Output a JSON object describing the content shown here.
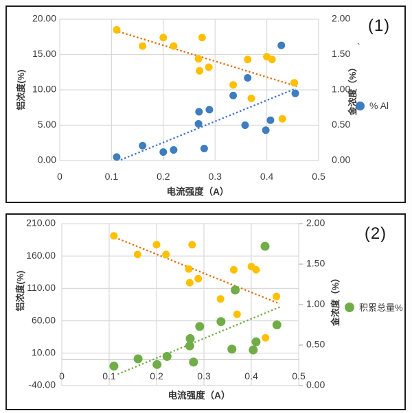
{
  "page": {
    "background": "#ffffff",
    "panel_border_color": "#1c1c1c"
  },
  "chart_data": [
    {
      "type": "scatter",
      "panel_label": "(1)",
      "stray_mark": "`",
      "grid": true,
      "legend_position": "right",
      "x_axis": {
        "label": "电流强度（A）",
        "range": [
          0,
          0.5
        ],
        "ticks": [
          {
            "v": 0,
            "label": "0"
          },
          {
            "v": 0.1,
            "label": "0.1"
          },
          {
            "v": 0.2,
            "label": "0.2"
          },
          {
            "v": 0.3,
            "label": "0.3"
          },
          {
            "v": 0.4,
            "label": "0.4"
          },
          {
            "v": 0.5,
            "label": "0.5"
          }
        ]
      },
      "y_left": {
        "label": "铝浓度(%)",
        "range": [
          0,
          20
        ],
        "ticks": [
          {
            "v": 0,
            "label": "0.00"
          },
          {
            "v": 5,
            "label": "5.00"
          },
          {
            "v": 10,
            "label": "10.00"
          },
          {
            "v": 15,
            "label": "15.00"
          },
          {
            "v": 20,
            "label": "20.00"
          }
        ]
      },
      "y_right": {
        "label": "金浓度（%）",
        "range": [
          0,
          2
        ],
        "ticks": [
          {
            "v": 0,
            "label": "0.00"
          },
          {
            "v": 0.5,
            "label": "0.50"
          },
          {
            "v": 1,
            "label": "1.00"
          },
          {
            "v": 1.5,
            "label": "1.50"
          },
          {
            "v": 2,
            "label": "2.00"
          }
        ]
      },
      "legend": {
        "label": "% Al",
        "color": "#3e7dbe"
      },
      "series": [
        {
          "name": "gold-concentration",
          "axis": "right",
          "color": "#ffc000",
          "points": [
            [
              0.11,
              1.85
            ],
            [
              0.16,
              1.62
            ],
            [
              0.2,
              1.74
            ],
            [
              0.22,
              1.62
            ],
            [
              0.275,
              1.74
            ],
            [
              0.268,
              1.44
            ],
            [
              0.288,
              1.32
            ],
            [
              0.27,
              1.27
            ],
            [
              0.335,
              1.07
            ],
            [
              0.363,
              1.43
            ],
            [
              0.37,
              0.88
            ],
            [
              0.4,
              1.47
            ],
            [
              0.41,
              1.43
            ],
            [
              0.43,
              0.59
            ],
            [
              0.453,
              1.1
            ]
          ]
        },
        {
          "name": "al-percent",
          "axis": "left",
          "color": "#3e7dbe",
          "points": [
            [
              0.11,
              0.5
            ],
            [
              0.16,
              2.1
            ],
            [
              0.2,
              1.2
            ],
            [
              0.22,
              1.5
            ],
            [
              0.268,
              5.2
            ],
            [
              0.269,
              6.9
            ],
            [
              0.289,
              7.2
            ],
            [
              0.279,
              1.7
            ],
            [
              0.335,
              9.2
            ],
            [
              0.358,
              5.0
            ],
            [
              0.363,
              11.7
            ],
            [
              0.398,
              4.3
            ],
            [
              0.407,
              5.7
            ],
            [
              0.428,
              16.3
            ],
            [
              0.455,
              9.5
            ]
          ]
        }
      ],
      "trendlines": [
        {
          "name": "gold-trend",
          "axis": "right",
          "color": "#e36c09",
          "from": [
            0.107,
            1.84
          ],
          "to": [
            0.458,
            1.05
          ]
        },
        {
          "name": "al-trend",
          "axis": "left",
          "color": "#4472c4",
          "from": [
            0.118,
            0.1
          ],
          "to": [
            0.456,
            10.2
          ]
        }
      ]
    },
    {
      "type": "scatter",
      "panel_label": "(2)",
      "grid": true,
      "legend_position": "right",
      "x_axis": {
        "label": "电流强度（A）",
        "range": [
          0,
          0.5
        ],
        "ticks": [
          {
            "v": 0,
            "label": "0"
          },
          {
            "v": 0.1,
            "label": "0.1"
          },
          {
            "v": 0.2,
            "label": "0.2"
          },
          {
            "v": 0.3,
            "label": "0.3"
          },
          {
            "v": 0.4,
            "label": "0.4"
          },
          {
            "v": 0.5,
            "label": "0.5"
          }
        ]
      },
      "y_left": {
        "label": "铝浓度(%)",
        "range": [
          -40,
          210
        ],
        "ticks": [
          {
            "v": -40,
            "label": "-40.00"
          },
          {
            "v": 10,
            "label": "10.00"
          },
          {
            "v": 60,
            "label": "60.00"
          },
          {
            "v": 110,
            "label": "110.00"
          },
          {
            "v": 160,
            "label": "160.00"
          },
          {
            "v": 210,
            "label": "210.00"
          }
        ]
      },
      "y_right": {
        "label": "金浓度（%）",
        "range": [
          0,
          2
        ],
        "ticks": [
          {
            "v": 0,
            "label": "0.00"
          },
          {
            "v": 0.5,
            "label": "0.50"
          },
          {
            "v": 1,
            "label": "1.00"
          },
          {
            "v": 1.5,
            "label": "1.50"
          },
          {
            "v": 2,
            "label": "2.00"
          }
        ]
      },
      "legend": {
        "label": "积累总量%",
        "color": "#70ad47"
      },
      "series": [
        {
          "name": "gold-concentration",
          "axis": "right",
          "color": "#ffc000",
          "points": [
            [
              0.11,
              1.85
            ],
            [
              0.16,
              1.62
            ],
            [
              0.2,
              1.74
            ],
            [
              0.22,
              1.62
            ],
            [
              0.275,
              1.74
            ],
            [
              0.268,
              1.44
            ],
            [
              0.288,
              1.32
            ],
            [
              0.27,
              1.27
            ],
            [
              0.335,
              1.07
            ],
            [
              0.363,
              1.43
            ],
            [
              0.37,
              0.88
            ],
            [
              0.4,
              1.47
            ],
            [
              0.41,
              1.43
            ],
            [
              0.43,
              0.59
            ],
            [
              0.453,
              1.1
            ]
          ]
        },
        {
          "name": "accumulated-total",
          "axis": "right",
          "color": "#70ad47",
          "points": [
            [
              0.11,
              0.24
            ],
            [
              0.161,
              0.33
            ],
            [
              0.201,
              0.26
            ],
            [
              0.222,
              0.36
            ],
            [
              0.27,
              0.49
            ],
            [
              0.271,
              0.58
            ],
            [
              0.278,
              0.29
            ],
            [
              0.291,
              0.73
            ],
            [
              0.336,
              0.79
            ],
            [
              0.359,
              0.45
            ],
            [
              0.366,
              1.18
            ],
            [
              0.404,
              0.44
            ],
            [
              0.41,
              0.54
            ],
            [
              0.429,
              1.72
            ],
            [
              0.454,
              0.75
            ]
          ]
        }
      ],
      "trendlines": [
        {
          "name": "gold-trend",
          "axis": "right",
          "color": "#e36c09",
          "from": [
            0.112,
            1.83
          ],
          "to": [
            0.46,
            1.01
          ]
        },
        {
          "name": "accum-trend",
          "axis": "right",
          "color": "#70ad47",
          "from": [
            0.118,
            0.14
          ],
          "to": [
            0.46,
            0.97
          ]
        }
      ]
    }
  ]
}
